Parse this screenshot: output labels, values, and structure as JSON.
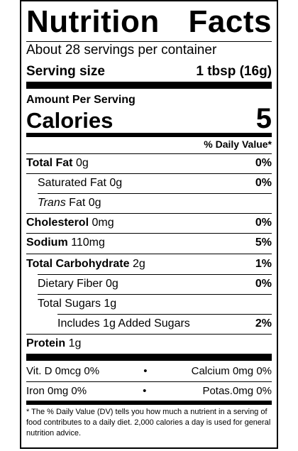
{
  "title": {
    "word1": "Nutrition",
    "word2": "Facts"
  },
  "servings_per_container": "About 28 servings per container",
  "serving_size": {
    "label": "Serving size",
    "value": "1 tbsp (16g)"
  },
  "amount_per_serving": "Amount Per Serving",
  "calories": {
    "label": "Calories",
    "value": "5"
  },
  "daily_value_header": "% Daily Value*",
  "nutrients": {
    "total_fat": {
      "name": "Total Fat",
      "amount": "0g",
      "dv": "0%"
    },
    "saturated_fat": {
      "name": "Saturated Fat",
      "amount": "0g",
      "dv": "0%"
    },
    "trans_fat": {
      "name": "Trans",
      "suffix": "Fat",
      "amount": "0g"
    },
    "cholesterol": {
      "name": "Cholesterol",
      "amount": "0mg",
      "dv": "0%"
    },
    "sodium": {
      "name": "Sodium",
      "amount": "110mg",
      "dv": "5%"
    },
    "total_carbohydrate": {
      "name": "Total Carbohydrate",
      "amount": "2g",
      "dv": "1%"
    },
    "dietary_fiber": {
      "name": "Dietary Fiber",
      "amount": "0g",
      "dv": "0%"
    },
    "total_sugars": {
      "name": "Total Sugars",
      "amount": "1g"
    },
    "added_sugars": {
      "text": "Includes 1g Added Sugars",
      "dv": "2%"
    },
    "protein": {
      "name": "Protein",
      "amount": "1g"
    }
  },
  "vitamins": {
    "row1": {
      "left": "Vit. D 0mcg 0%",
      "bullet": "•",
      "right": "Calcium 0mg 0%"
    },
    "row2": {
      "left": "Iron 0mg 0%",
      "bullet": "•",
      "right": "Potas.0mg 0%"
    }
  },
  "footnote": "* The % Daily Value (DV) tells you how much a nutrient in a serving of food contributes to a daily diet. 2,000 calories a day is used for general nutrition advice."
}
